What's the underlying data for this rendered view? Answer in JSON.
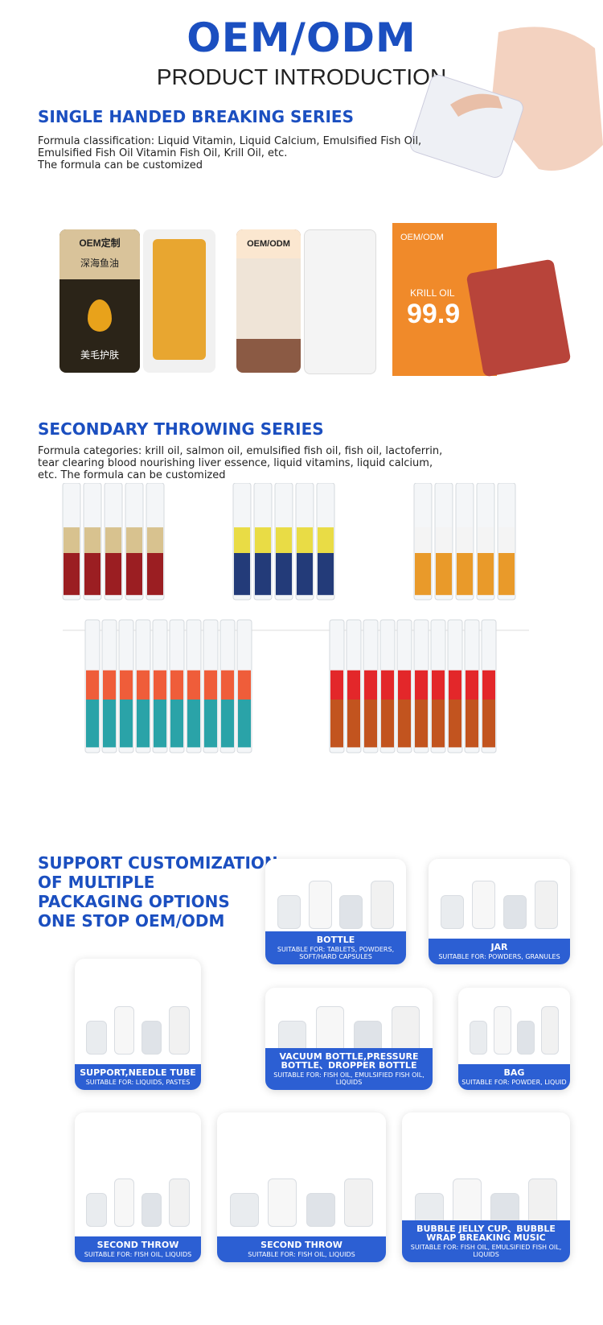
{
  "header": {
    "title": "OEM/ODM",
    "subtitle": "PRODUCT INTRODUCTION"
  },
  "sections": [
    {
      "heading": "SINGLE HANDED BREAKING SERIES",
      "lines": [
        "Formula classification: Liquid Vitamin, Liquid Calcium, Emulsified Fish Oil,",
        "Emulsified Fish Oil Vitamin Fish Oil, Krill Oil, etc.",
        "The formula can be customized"
      ],
      "labels": [
        "OEM定制",
        "深海鱼油",
        "美毛护肤",
        "OEM/ODM",
        "OEM/ODM",
        "KRILL OIL",
        "99.9"
      ]
    },
    {
      "heading": "SECONDARY THROWING SERIES",
      "lines": [
        "Formula categories: krill oil, salmon oil, emulsified fish oil, fish oil, lactoferrin,",
        "tear clearing blood nourishing liver essence, liquid vitamins, liquid calcium,",
        "etc. The formula can be customized"
      ]
    }
  ],
  "packaging": {
    "heading": [
      "SUPPORT CUSTOMIZATION",
      "OF MULTIPLE",
      "PACKAGING OPTIONS",
      "ONE STOP OEM/ODM"
    ],
    "cards": [
      {
        "title": "BOTTLE",
        "subtitle": "SUITABLE FOR: TABLETS, POWDERS, SOFT/HARD CAPSULES"
      },
      {
        "title": "JAR",
        "subtitle": "SUITABLE FOR: POWDERS, GRANULES"
      },
      {
        "title": "SUPPORT,NEEDLE TUBE",
        "subtitle": "SUITABLE FOR: LIQUIDS, PASTES"
      },
      {
        "title": "VACUUM BOTTLE,PRESSURE BOTTLE、DROPPER BOTTLE",
        "subtitle": "SUITABLE FOR: FISH OIL, EMULSIFIED FISH OIL, LIQUIDS"
      },
      {
        "title": "BAG",
        "subtitle": "SUITABLE FOR: POWDER, LIQUID"
      },
      {
        "title": "SECOND THROW",
        "subtitle": "SUITABLE FOR: FISH OIL, LIQUIDS"
      },
      {
        "title": "SECOND THROW",
        "subtitle": "SUITABLE FOR: FISH OIL, LIQUIDS"
      },
      {
        "title": "BUBBLE JELLY CUP、BUBBLE WRAP BREAKING MUSIC",
        "subtitle": "SUITABLE FOR: FISH OIL, EMULSIFIED FISH OIL, LIQUIDS"
      }
    ]
  }
}
